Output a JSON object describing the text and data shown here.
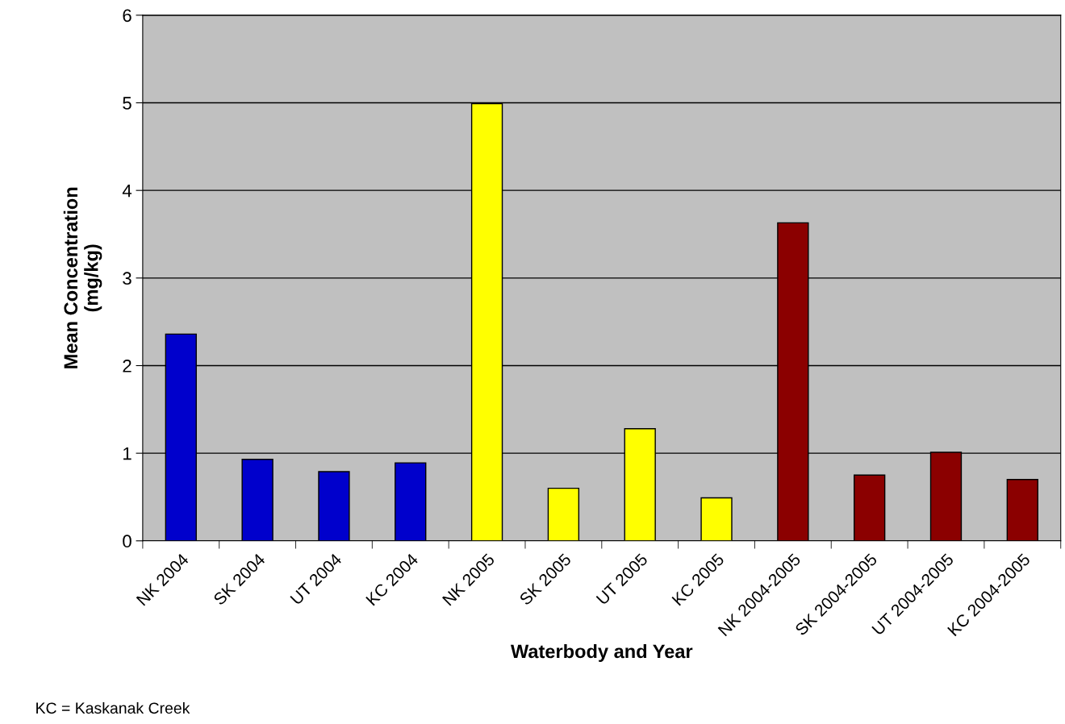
{
  "chart_data": {
    "type": "bar",
    "xlabel": "Waterbody and Year",
    "ylabel": "Mean Concentration\n(mg/kg)",
    "categories": [
      "NK 2004",
      "SK 2004",
      "UT 2004",
      "KC 2004",
      "NK 2005",
      "SK 2005",
      "UT 2005",
      "KC 2005",
      "NK 2004-2005",
      "SK 2004-2005",
      "UT 2004-2005",
      "KC 2004-2005"
    ],
    "values": [
      2.36,
      0.93,
      0.79,
      0.89,
      4.99,
      0.6,
      1.28,
      0.49,
      3.63,
      0.75,
      1.01,
      0.7
    ],
    "colors": [
      "#0000cc",
      "#0000cc",
      "#0000cc",
      "#0000cc",
      "#ffff00",
      "#ffff00",
      "#ffff00",
      "#ffff00",
      "#8b0000",
      "#8b0000",
      "#8b0000",
      "#8b0000"
    ],
    "ylim": [
      0,
      6
    ],
    "yticks": [
      0,
      1,
      2,
      3,
      4,
      5,
      6
    ],
    "grid": "y",
    "annotations": [
      "KC = Kaskanak Creek"
    ]
  }
}
